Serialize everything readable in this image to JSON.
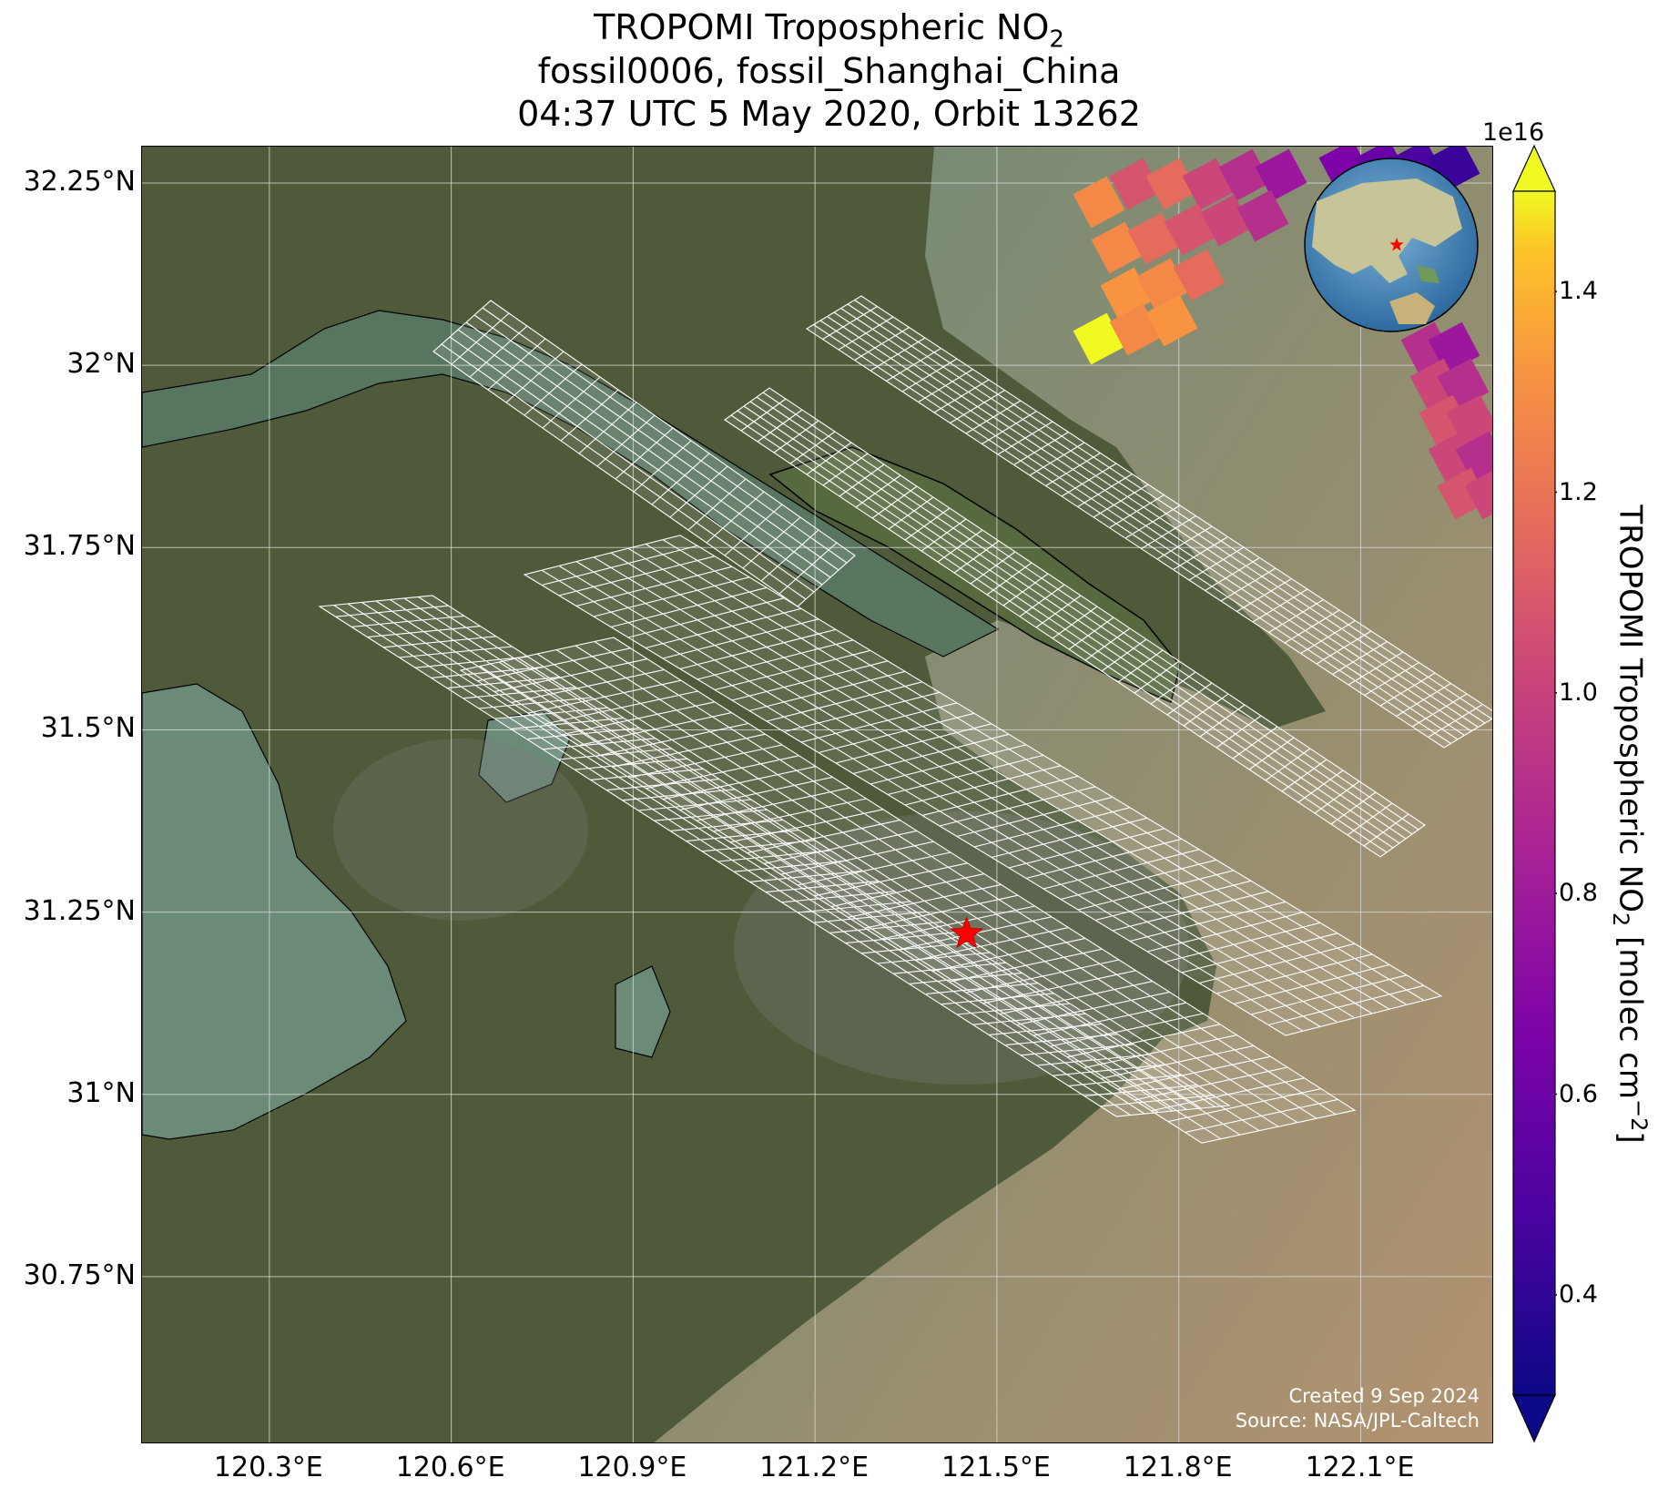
{
  "title": {
    "line1_main": "TROPOMI Tropospheric NO",
    "line1_sub": "2",
    "line2": "fossil0006, fossil_Shanghai_China",
    "line3": "04:37 UTC 5 May 2020, Orbit 13262"
  },
  "map": {
    "lon_range": [
      120.09,
      122.32
    ],
    "lat_range": [
      30.52,
      32.3
    ],
    "lat_ticks": [
      "32.25°N",
      "32°N",
      "31.75°N",
      "31.5°N",
      "31.25°N",
      "31°N",
      "30.75°N"
    ],
    "lat_tick_values": [
      32.25,
      32.0,
      31.75,
      31.5,
      31.25,
      31.0,
      30.75
    ],
    "lon_ticks": [
      "120.3°E",
      "120.6°E",
      "120.9°E",
      "121.2°E",
      "121.5°E",
      "121.8°E",
      "122.1°E"
    ],
    "lon_tick_values": [
      120.3,
      120.6,
      120.9,
      121.2,
      121.5,
      121.8,
      122.1
    ],
    "target": {
      "lon": 121.45,
      "lat": 31.22,
      "marker": "star",
      "color": "#ff0000"
    },
    "gridlines": true,
    "basemap": "satellite imagery",
    "colors": {
      "land": "#4d5a38",
      "water": "#5f8070",
      "sea": "#a8906e",
      "grid": "#d8d8d8",
      "footprint": "#ffffff"
    }
  },
  "inset": {
    "type": "globe",
    "marker": "star",
    "marker_color": "#ff0000"
  },
  "colorbar": {
    "exponent": "1e16",
    "ticks": [
      "0.4",
      "0.6",
      "0.8",
      "1.0",
      "1.2",
      "1.4"
    ],
    "tick_values": [
      0.4,
      0.6,
      0.8,
      1.0,
      1.2,
      1.4
    ],
    "range": [
      0.3,
      1.5
    ],
    "colormap": "plasma",
    "label_main": "TROPOMI Tropospheric NO",
    "label_sub": "2",
    "label_units": " [molec cm",
    "label_sup": "−2",
    "label_close": "]",
    "extend": "both"
  },
  "credits": {
    "created": "Created 9 Sep 2024",
    "source": "Source: NASA/JPL-Caltech"
  }
}
